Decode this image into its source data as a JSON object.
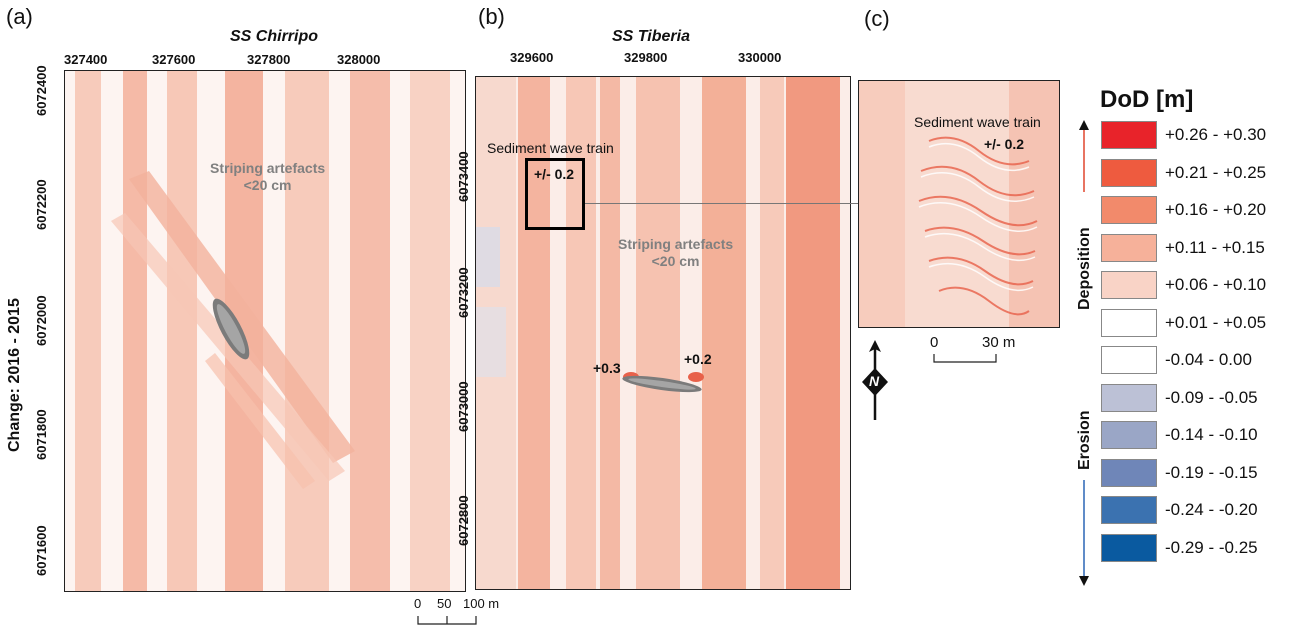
{
  "panels": {
    "a": {
      "letter": "(a)",
      "title": "SS Chirripo",
      "x_ticks": [
        "327400",
        "327600",
        "327800",
        "328000"
      ],
      "y_ticks": [
        "6072400",
        "6072200",
        "6072000",
        "6071800",
        "6071600"
      ],
      "annotation_line1": "Striping artefacts",
      "annotation_line2": "<20 cm"
    },
    "b": {
      "letter": "(b)",
      "title": "SS Tiberia",
      "x_ticks": [
        "329600",
        "329800",
        "330000"
      ],
      "y_ticks": [
        "6073400",
        "6073200",
        "6073000",
        "6072800"
      ],
      "wave_train_label": "Sediment wave train",
      "wave_train_value": "+/- 0.2",
      "annotation_line1": "Striping artefacts",
      "annotation_line2": "<20 cm",
      "value_left": "+0.3",
      "value_right": "+0.2",
      "scale_labels": [
        "0",
        "50",
        "100 m"
      ]
    },
    "c": {
      "letter": "(c)",
      "wave_train_label": "Sediment wave train",
      "wave_train_value": "+/- 0.2",
      "scale_labels": [
        "0",
        "30 m"
      ],
      "north_label": "N"
    }
  },
  "y_axis_label": "Change: 2016 - 2015",
  "legend": {
    "title": "DoD [m]",
    "deposition_label": "Deposition",
    "erosion_label": "Erosion",
    "deposition_color": "#e0452e",
    "erosion_color": "#2a66b5",
    "classes": [
      {
        "label": "+0.26 - +0.30",
        "color": "#e8232a"
      },
      {
        "label": "+0.21 - +0.25",
        "color": "#ee5b3f"
      },
      {
        "label": "+0.16 - +0.20",
        "color": "#f28a6b"
      },
      {
        "label": "+0.11 - +0.15",
        "color": "#f6b19a"
      },
      {
        "label": "+0.06 - +0.10",
        "color": "#f9d3c6"
      },
      {
        "label": "+0.01 - +0.05",
        "color": "#ffffff"
      },
      {
        "label": "-0.04 - 0.00",
        "color": "#ffffff"
      },
      {
        "label": "-0.09 - -0.05",
        "color": "#bcc1d6"
      },
      {
        "label": "-0.14 - -0.10",
        "color": "#9aa6c6"
      },
      {
        "label": "-0.19 - -0.15",
        "color": "#6f86b8"
      },
      {
        "label": "-0.24 - -0.20",
        "color": "#3b72b0"
      },
      {
        "label": "-0.29 - -0.25",
        "color": "#0a5aa0"
      }
    ]
  }
}
